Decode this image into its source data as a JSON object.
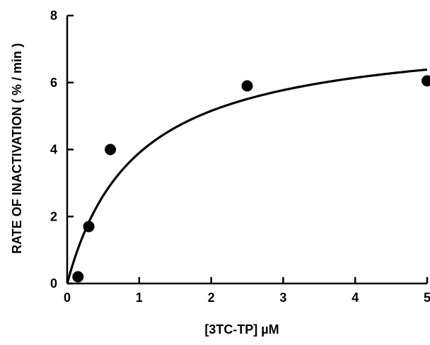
{
  "chart_data": {
    "type": "scatter",
    "title": "",
    "xlabel": "[3TC-TP] µM",
    "ylabel": "RATE OF INACTIVATION ( % / min )",
    "xlim": [
      0,
      5
    ],
    "ylim": [
      0,
      8
    ],
    "x_ticks": [
      0,
      1,
      2,
      3,
      4,
      5
    ],
    "y_ticks": [
      0,
      2,
      4,
      6,
      8
    ],
    "grid": false,
    "legend": "none",
    "series": [
      {
        "points": [
          {
            "x": 0.15,
            "y": 0.2
          },
          {
            "x": 0.3,
            "y": 1.7
          },
          {
            "x": 0.6,
            "y": 4.0
          },
          {
            "x": 2.5,
            "y": 5.9
          },
          {
            "x": 5.0,
            "y": 6.05
          }
        ]
      }
    ],
    "fit_curve": {
      "model": "hyperbolic",
      "vmax": 7.6,
      "k": 0.95
    }
  }
}
